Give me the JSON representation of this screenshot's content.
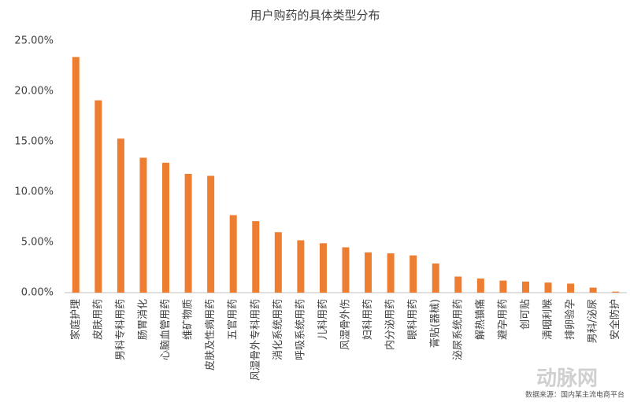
{
  "chart_data": {
    "type": "bar",
    "title": "用户购药的具体类型分布",
    "categories": [
      "家庭护理",
      "皮肤用药",
      "男科专科用药",
      "肠胃消化",
      "心脑血管用药",
      "维矿物质",
      "皮肤及性病用药",
      "五官用药",
      "风湿骨外专科用药",
      "消化系统用药",
      "呼吸系统用药",
      "儿科用药",
      "风湿骨外伤",
      "妇科用药",
      "内分泌用药",
      "眼科用药",
      "膏贴(器械)",
      "泌尿系统用药",
      "解热镇痛",
      "避孕用药",
      "创可贴",
      "清咽利喉",
      "排卵验孕",
      "男科/泌尿",
      "安全防护"
    ],
    "values": [
      23.4,
      19.1,
      15.3,
      13.4,
      12.9,
      11.8,
      11.6,
      7.7,
      7.1,
      6.0,
      5.2,
      4.9,
      4.5,
      4.0,
      3.9,
      3.7,
      2.9,
      1.6,
      1.4,
      1.2,
      1.1,
      1.0,
      0.9,
      0.5,
      0.1
    ],
    "color": "#ed7d31",
    "ylim": [
      0,
      25
    ],
    "yticks": [
      {
        "value": 0,
        "label": "0.00%"
      },
      {
        "value": 5,
        "label": "5.00%"
      },
      {
        "value": 10,
        "label": "10.00%"
      },
      {
        "value": 15,
        "label": "15.00%"
      },
      {
        "value": 20,
        "label": "20.00%"
      },
      {
        "value": 25,
        "label": "25.00%"
      }
    ],
    "grid": false,
    "source": "数据来源：国内某主流电商平台",
    "watermark": "动脉网"
  }
}
